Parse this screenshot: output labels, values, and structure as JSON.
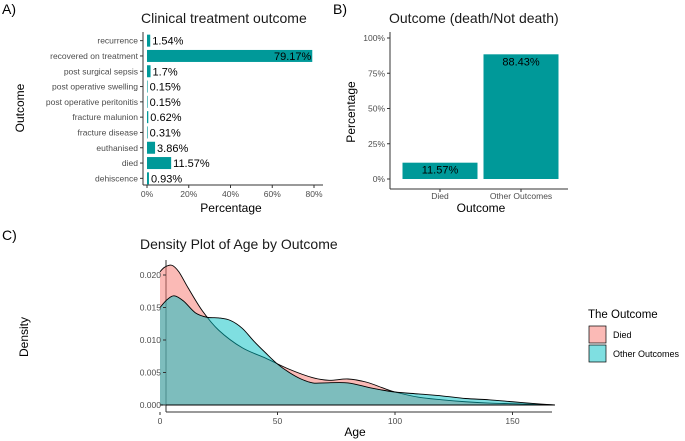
{
  "chart_data": [
    {
      "panel": "A)",
      "type": "bar",
      "orientation": "horizontal",
      "title": "Clinical treatment outcome",
      "xlabel": "Percentage",
      "ylabel": "Outcome",
      "xlim": [
        0,
        80
      ],
      "xticks": [
        "0%",
        "20%",
        "40%",
        "60%",
        "80%"
      ],
      "categories": [
        "recurrence",
        "recovered on treatment",
        "post surgical sepsis",
        "post operative swelling",
        "post operative peritonitis",
        "fracture malunion",
        "fracture disease",
        "euthanised",
        "died",
        "dehiscence"
      ],
      "values": [
        1.54,
        79.17,
        1.7,
        0.15,
        0.15,
        0.62,
        0.31,
        3.86,
        11.57,
        0.93
      ],
      "labels": [
        "1.54%",
        "79.17%",
        "1.7%",
        "0.15%",
        "0.15%",
        "0.62%",
        "0.31%",
        "3.86%",
        "11.57%",
        "0.93%"
      ],
      "color": "#009999"
    },
    {
      "panel": "B)",
      "type": "bar",
      "title": "Outcome (death/Not death)",
      "xlabel": "Outcome",
      "ylabel": "Percentage",
      "ylim": [
        0,
        100
      ],
      "yticks": [
        "0%",
        "25%",
        "50%",
        "75%",
        "100%"
      ],
      "categories": [
        "Died",
        "Other Outcomes"
      ],
      "values": [
        11.57,
        88.43
      ],
      "labels": [
        "11.57%",
        "88.43%"
      ],
      "color": "#009999"
    },
    {
      "panel": "C)",
      "type": "area",
      "title": "Density Plot of Age by Outcome",
      "xlabel": "Age",
      "ylabel": "Density",
      "xlim": [
        0,
        168
      ],
      "ylim": [
        0,
        0.0215
      ],
      "xticks": [
        "0",
        "50",
        "100",
        "150"
      ],
      "yticks": [
        "0.000",
        "0.005",
        "0.010",
        "0.015",
        "0.020"
      ],
      "legend_title": "The Outcome",
      "legend_position": "right",
      "series": [
        {
          "name": "Died",
          "color": "#F8766D",
          "x": [
            0,
            2,
            5,
            8,
            12,
            18,
            25,
            35,
            45,
            55,
            65,
            72,
            80,
            88,
            95,
            100,
            110,
            120,
            130,
            140,
            150,
            160,
            168
          ],
          "y": [
            0.0205,
            0.0212,
            0.0215,
            0.0205,
            0.018,
            0.0145,
            0.0115,
            0.0088,
            0.0072,
            0.0055,
            0.0042,
            0.0038,
            0.004,
            0.0035,
            0.0026,
            0.002,
            0.0012,
            0.0008,
            0.0005,
            0.0003,
            0.0002,
            0.0001,
            0.0
          ]
        },
        {
          "name": "Other Outcomes",
          "color": "#00BFC4",
          "x": [
            0,
            3,
            6,
            10,
            15,
            20,
            25,
            30,
            35,
            40,
            45,
            50,
            55,
            60,
            65,
            70,
            80,
            90,
            100,
            110,
            120,
            130,
            140,
            150,
            160,
            168
          ],
          "y": [
            0.015,
            0.0162,
            0.0168,
            0.016,
            0.0142,
            0.0135,
            0.0134,
            0.013,
            0.0118,
            0.0098,
            0.008,
            0.0063,
            0.005,
            0.004,
            0.0034,
            0.0034,
            0.0034,
            0.0026,
            0.002,
            0.0017,
            0.0014,
            0.001,
            0.0008,
            0.0005,
            0.0002,
            0.0
          ]
        }
      ]
    }
  ]
}
